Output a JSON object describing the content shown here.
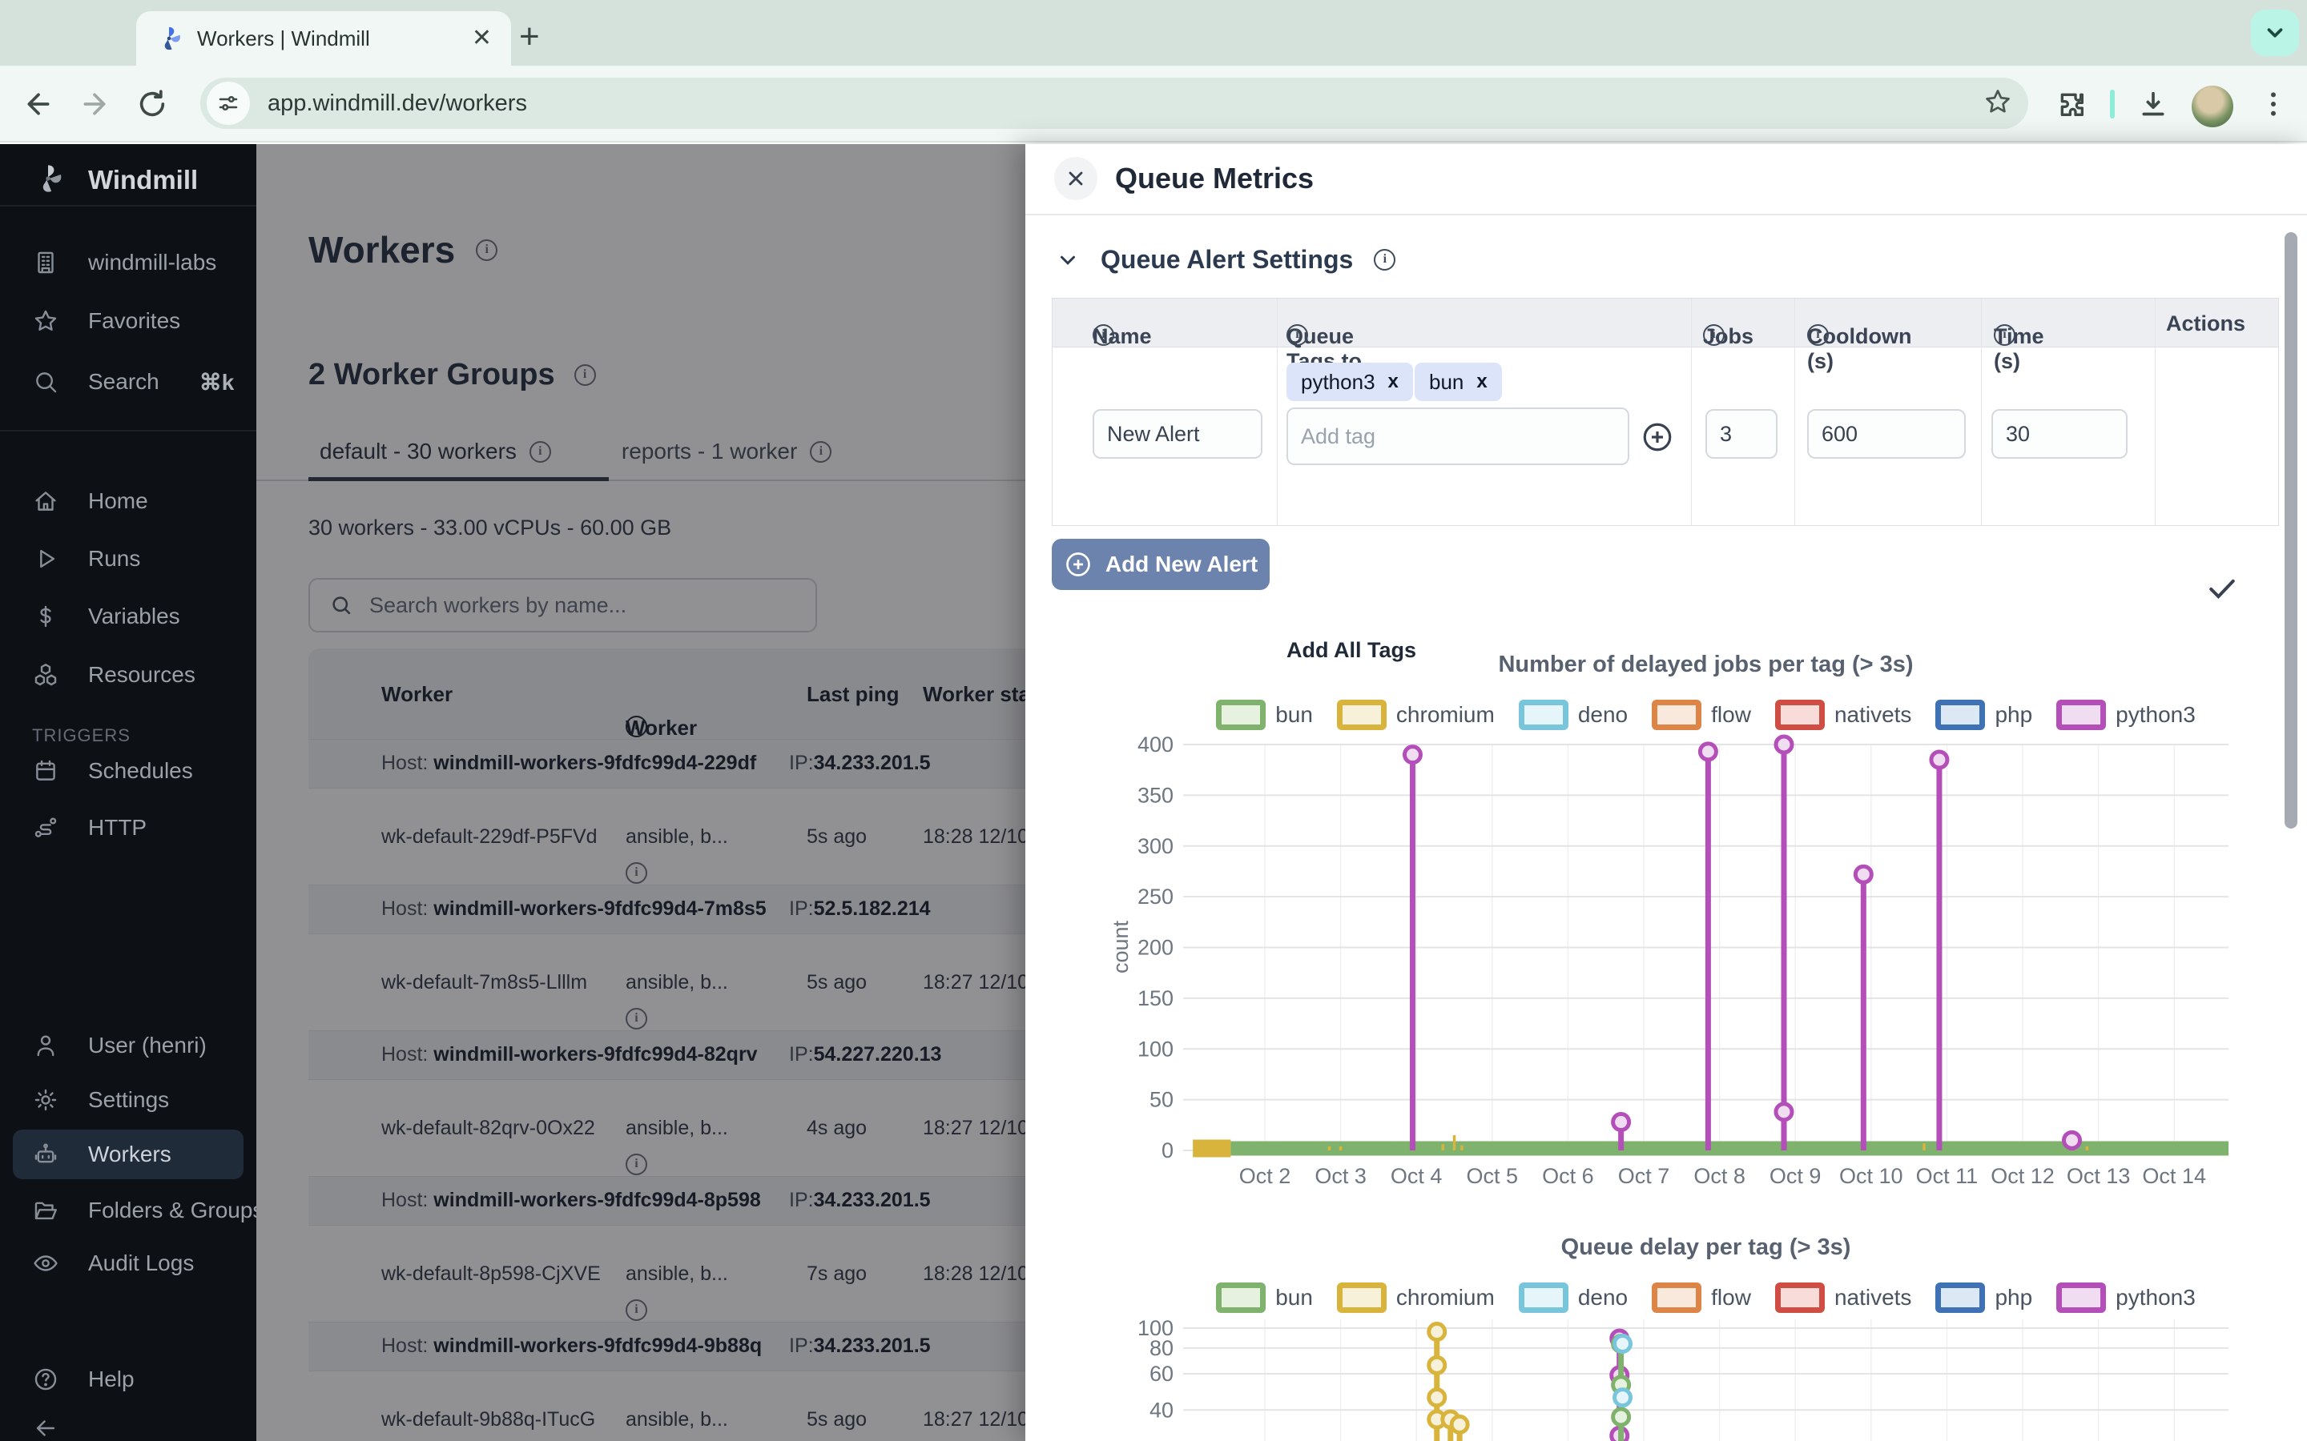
{
  "browser": {
    "tab_title": "Workers | Windmill",
    "url": "app.windmill.dev/workers"
  },
  "sidebar": {
    "logo_text": "Windmill",
    "top": [
      {
        "icon": "building-icon",
        "label": "windmill-labs"
      },
      {
        "icon": "star-icon",
        "label": "Favorites"
      },
      {
        "icon": "search-icon",
        "label": "Search",
        "shortcut": "⌘k"
      }
    ],
    "menu": [
      {
        "icon": "home-icon",
        "label": "Home"
      },
      {
        "icon": "play-icon",
        "label": "Runs"
      },
      {
        "icon": "dollar-icon",
        "label": "Variables"
      },
      {
        "icon": "cubes-icon",
        "label": "Resources"
      }
    ],
    "triggers_label": "TRIGGERS",
    "trigger_items": [
      {
        "icon": "calendar-icon",
        "label": "Schedules"
      },
      {
        "icon": "route-icon",
        "label": "HTTP"
      }
    ],
    "account": [
      {
        "icon": "user-icon",
        "label": "User (henri)"
      },
      {
        "icon": "gear-icon",
        "label": "Settings"
      },
      {
        "icon": "robot-icon",
        "label": "Workers",
        "active": true
      },
      {
        "icon": "folder-icon",
        "label": "Folders & Groups..."
      },
      {
        "icon": "eye-icon",
        "label": "Audit Logs"
      }
    ],
    "help_label": "Help"
  },
  "main": {
    "title": "Workers",
    "groups_title": "2 Worker Groups",
    "tabs": [
      {
        "label": "default - 30 workers",
        "active": true
      },
      {
        "label": "reports - 1 worker",
        "active": false
      }
    ],
    "summary": "30 workers - 33.00 vCPUs - 60.00 GB",
    "search_placeholder": "Search workers by name...",
    "table": {
      "headers": [
        "Worker",
        "Worker Tags",
        "Last ping",
        "Worker star"
      ],
      "host_prefix": "Host: ",
      "ip_prefix": "IP:",
      "groups": [
        {
          "host": "windmill-workers-9fdfc99d4-229df",
          "ip": "34.233.201.5",
          "worker": {
            "name": "wk-default-229df-P5FVd",
            "tags": "ansible, b...",
            "ping": "5s ago",
            "start": "18:28 12/10"
          }
        },
        {
          "host": "windmill-workers-9fdfc99d4-7m8s5",
          "ip": "52.5.182.214",
          "worker": {
            "name": "wk-default-7m8s5-Llllm",
            "tags": "ansible, b...",
            "ping": "5s ago",
            "start": "18:27 12/10"
          }
        },
        {
          "host": "windmill-workers-9fdfc99d4-82qrv",
          "ip": "54.227.220.13",
          "worker": {
            "name": "wk-default-82qrv-0Ox22",
            "tags": "ansible, b...",
            "ping": "4s ago",
            "start": "18:27 12/10"
          }
        },
        {
          "host": "windmill-workers-9fdfc99d4-8p598",
          "ip": "34.233.201.5",
          "worker": {
            "name": "wk-default-8p598-CjXVE",
            "tags": "ansible, b...",
            "ping": "7s ago",
            "start": "18:28 12/10"
          }
        },
        {
          "host": "windmill-workers-9fdfc99d4-9b88q",
          "ip": "34.233.201.5",
          "worker": {
            "name": "wk-default-9b88q-ITucG",
            "tags": "ansible, b...",
            "ping": "5s ago",
            "start": "18:27 12/10"
          }
        }
      ]
    }
  },
  "drawer": {
    "title": "Queue Metrics",
    "section_title": "Queue Alert Settings",
    "alert_table": {
      "headers": [
        "Name",
        "Queue Tags to Monitor",
        "Jobs",
        "Cooldown (s)",
        "Time (s)",
        "Actions"
      ],
      "row": {
        "name": "New Alert",
        "tags": [
          "python3",
          "bun"
        ],
        "tag_remove": "x",
        "add_tag_placeholder": "Add tag",
        "add_all_tags_label": "Add All Tags",
        "jobs": "3",
        "cooldown": "600",
        "time": "30"
      }
    },
    "add_button_label": "Add New Alert"
  },
  "chart_legend": [
    "bun",
    "chromium",
    "deno",
    "flow",
    "nativets",
    "php",
    "python3"
  ],
  "chart_colors": {
    "bun": {
      "stroke": "#7eb26d",
      "fill": "#e7f1e0"
    },
    "chromium": {
      "stroke": "#d9b43c",
      "fill": "#f8f1d9"
    },
    "deno": {
      "stroke": "#79c6dc",
      "fill": "#e6f5fa"
    },
    "flow": {
      "stroke": "#dd8447",
      "fill": "#f9e9dc"
    },
    "nativets": {
      "stroke": "#cf4d43",
      "fill": "#f7dcda"
    },
    "php": {
      "stroke": "#3f72b5",
      "fill": "#dde8f5"
    },
    "python3": {
      "stroke": "#b44fba",
      "fill": "#f0ddf2"
    }
  },
  "chart_data": [
    {
      "type": "line",
      "title": "Number of delayed jobs per tag (> 3s)",
      "ylabel": "count",
      "yscale": "linear",
      "ylim": [
        0,
        415
      ],
      "yticks": [
        0,
        50,
        100,
        150,
        200,
        250,
        300,
        350,
        400
      ],
      "grid": true,
      "legend_position": "top",
      "xticks": [
        {
          "d": 2,
          "label": "Oct 2"
        },
        {
          "d": 3,
          "label": "Oct 3"
        },
        {
          "d": 4,
          "label": "Oct 4"
        },
        {
          "d": 5,
          "label": "Oct 5"
        },
        {
          "d": 6,
          "label": "Oct 6"
        },
        {
          "d": 7,
          "label": "Oct 7"
        },
        {
          "d": 8,
          "label": "Oct 8"
        },
        {
          "d": 9,
          "label": "Oct 9"
        },
        {
          "d": 10,
          "label": "Oct 10"
        },
        {
          "d": 11,
          "label": "Oct 11"
        },
        {
          "d": 12,
          "label": "Oct 12"
        },
        {
          "d": 13,
          "label": "Oct 13"
        },
        {
          "d": 14,
          "label": "Oct 14"
        }
      ],
      "series": [
        {
          "name": "chromium",
          "type": "band",
          "from": 1.05,
          "to": 1.55,
          "y": 2,
          "width": 22
        },
        {
          "name": "bun",
          "type": "band",
          "from": 1.55,
          "to": 14.72,
          "y": 2,
          "width": 18
        },
        {
          "name": "bun",
          "type": "spikes",
          "points": [
            [
              1.8,
              6
            ],
            [
              2.0,
              8
            ],
            [
              2.15,
              5
            ],
            [
              3.75,
              9
            ],
            [
              6.65,
              6
            ],
            [
              12.6,
              6
            ]
          ]
        },
        {
          "name": "chromium",
          "type": "spikes",
          "points": [
            [
              2.85,
              4
            ],
            [
              3.0,
              4
            ],
            [
              4.35,
              6
            ],
            [
              4.5,
              15
            ],
            [
              4.6,
              5
            ],
            [
              10.7,
              7
            ],
            [
              12.85,
              4
            ]
          ]
        },
        {
          "name": "python3",
          "type": "stems",
          "points": [
            [
              3.95,
              390
            ],
            [
              6.7,
              28
            ],
            [
              7.85,
              393
            ],
            [
              8.85,
              400
            ],
            [
              8.85,
              38
            ],
            [
              9.9,
              272
            ],
            [
              10.9,
              385
            ],
            [
              12.65,
              10
            ]
          ]
        }
      ]
    },
    {
      "type": "line",
      "title": "Queue delay per tag (> 3s)",
      "ylabel": "",
      "yscale": "log",
      "ylim": [
        28,
        105
      ],
      "yticks": [
        100,
        80,
        60,
        40
      ],
      "grid": true,
      "legend_position": "top",
      "series": [
        {
          "name": "chromium",
          "type": "stem-down",
          "x": 4.27,
          "markers": [
            96,
            66,
            46,
            36
          ]
        },
        {
          "name": "chromium",
          "type": "stem-down",
          "x": 4.45,
          "markers": [
            36
          ]
        },
        {
          "name": "chromium",
          "type": "stem-down",
          "x": 4.57,
          "markers": [
            34
          ]
        },
        {
          "name": "python3",
          "type": "stem-down",
          "x": 6.68,
          "markers": [
            89,
            59,
            30
          ]
        },
        {
          "name": "bun",
          "type": "stem-down",
          "x": 6.7,
          "markers": [
            84,
            53,
            37
          ]
        },
        {
          "name": "deno",
          "type": "markers",
          "x": 6.72,
          "markers": [
            84,
            46
          ]
        }
      ]
    }
  ]
}
